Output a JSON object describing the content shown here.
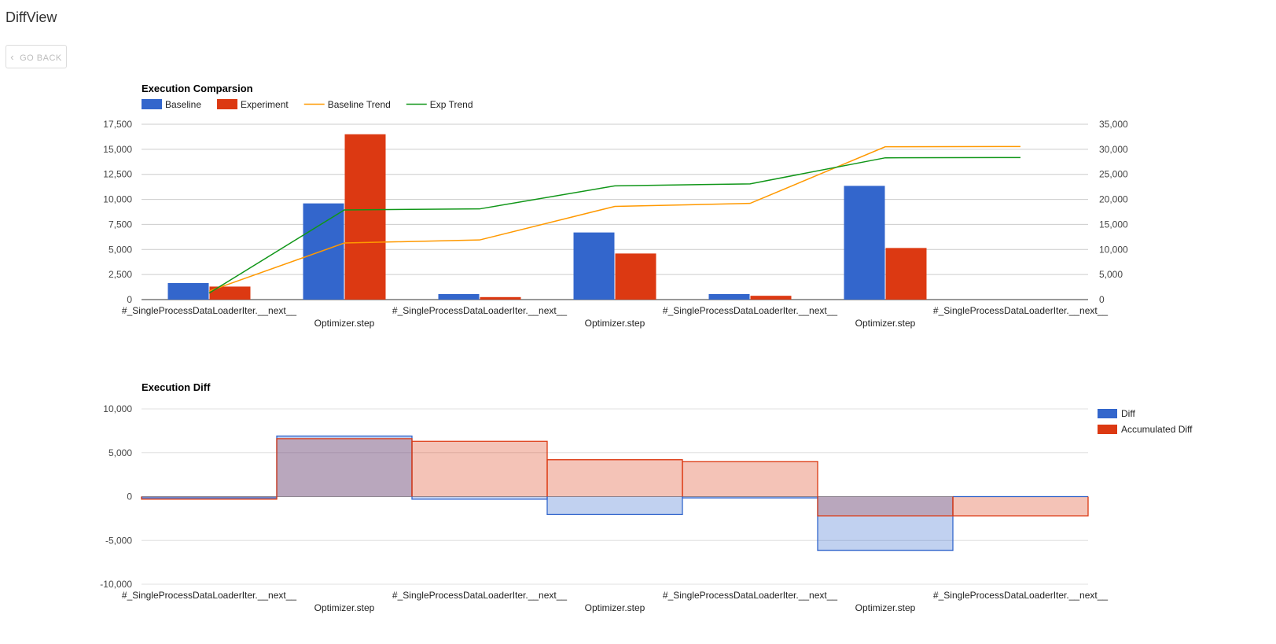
{
  "page": {
    "title": "DiffView",
    "back_label": "GO BACK",
    "back_icon": "chevron-left-icon"
  },
  "chart_data": [
    {
      "type": "bar",
      "title": "Execution Comparsion",
      "categories": [
        "#_SingleProcessDataLoaderIter.__next__",
        "Optimizer.step",
        "#_SingleProcessDataLoaderIter.__next__",
        "Optimizer.step",
        "#_SingleProcessDataLoaderIter.__next__",
        "Optimizer.step",
        "#_SingleProcessDataLoaderIter.__next__"
      ],
      "series": [
        {
          "name": "Baseline",
          "type": "bar",
          "axis": "left",
          "color": "#3366cc",
          "values": [
            1650,
            9600,
            550,
            6700,
            550,
            11350,
            0
          ]
        },
        {
          "name": "Experiment",
          "type": "bar",
          "axis": "left",
          "color": "#dc3912",
          "values": [
            1300,
            16500,
            250,
            4600,
            380,
            5150,
            0
          ]
        },
        {
          "name": "Baseline Trend",
          "type": "line",
          "axis": "right",
          "color": "#ff9900",
          "values": [
            1700,
            11300,
            11900,
            18600,
            19200,
            30500,
            30550
          ]
        },
        {
          "name": "Exp Trend",
          "type": "line",
          "axis": "right",
          "color": "#109618",
          "values": [
            1300,
            17900,
            18100,
            22700,
            23100,
            28300,
            28350
          ]
        }
      ],
      "ylim": [
        0,
        17500
      ],
      "yticks": [
        "17,500",
        "15,000",
        "12,500",
        "10,000",
        "7,500",
        "5,000",
        "2,500",
        "0"
      ],
      "y2lim": [
        0,
        35000
      ],
      "y2ticks": [
        "35,000",
        "30,000",
        "25,000",
        "20,000",
        "15,000",
        "10,000",
        "5,000",
        "0"
      ],
      "grid": true,
      "legend": "top"
    },
    {
      "type": "area",
      "title": "Execution Diff",
      "categories": [
        "#_SingleProcessDataLoaderIter.__next__",
        "Optimizer.step",
        "#_SingleProcessDataLoaderIter.__next__",
        "Optimizer.step",
        "#_SingleProcessDataLoaderIter.__next__",
        "Optimizer.step",
        "#_SingleProcessDataLoaderIter.__next__"
      ],
      "series": [
        {
          "name": "Diff",
          "color": "#3366cc",
          "values": [
            -150,
            6900,
            -300,
            -2050,
            -150,
            -6150,
            0
          ]
        },
        {
          "name": "Accumulated Diff",
          "color": "#dc3912",
          "values": [
            -300,
            6600,
            6300,
            4200,
            4000,
            -2200,
            -2200
          ]
        }
      ],
      "ylim": [
        -10000,
        10000
      ],
      "yticks": [
        "10,000",
        "5,000",
        "0",
        "-5,000",
        "-10,000"
      ],
      "grid": true,
      "legend": "right"
    }
  ]
}
